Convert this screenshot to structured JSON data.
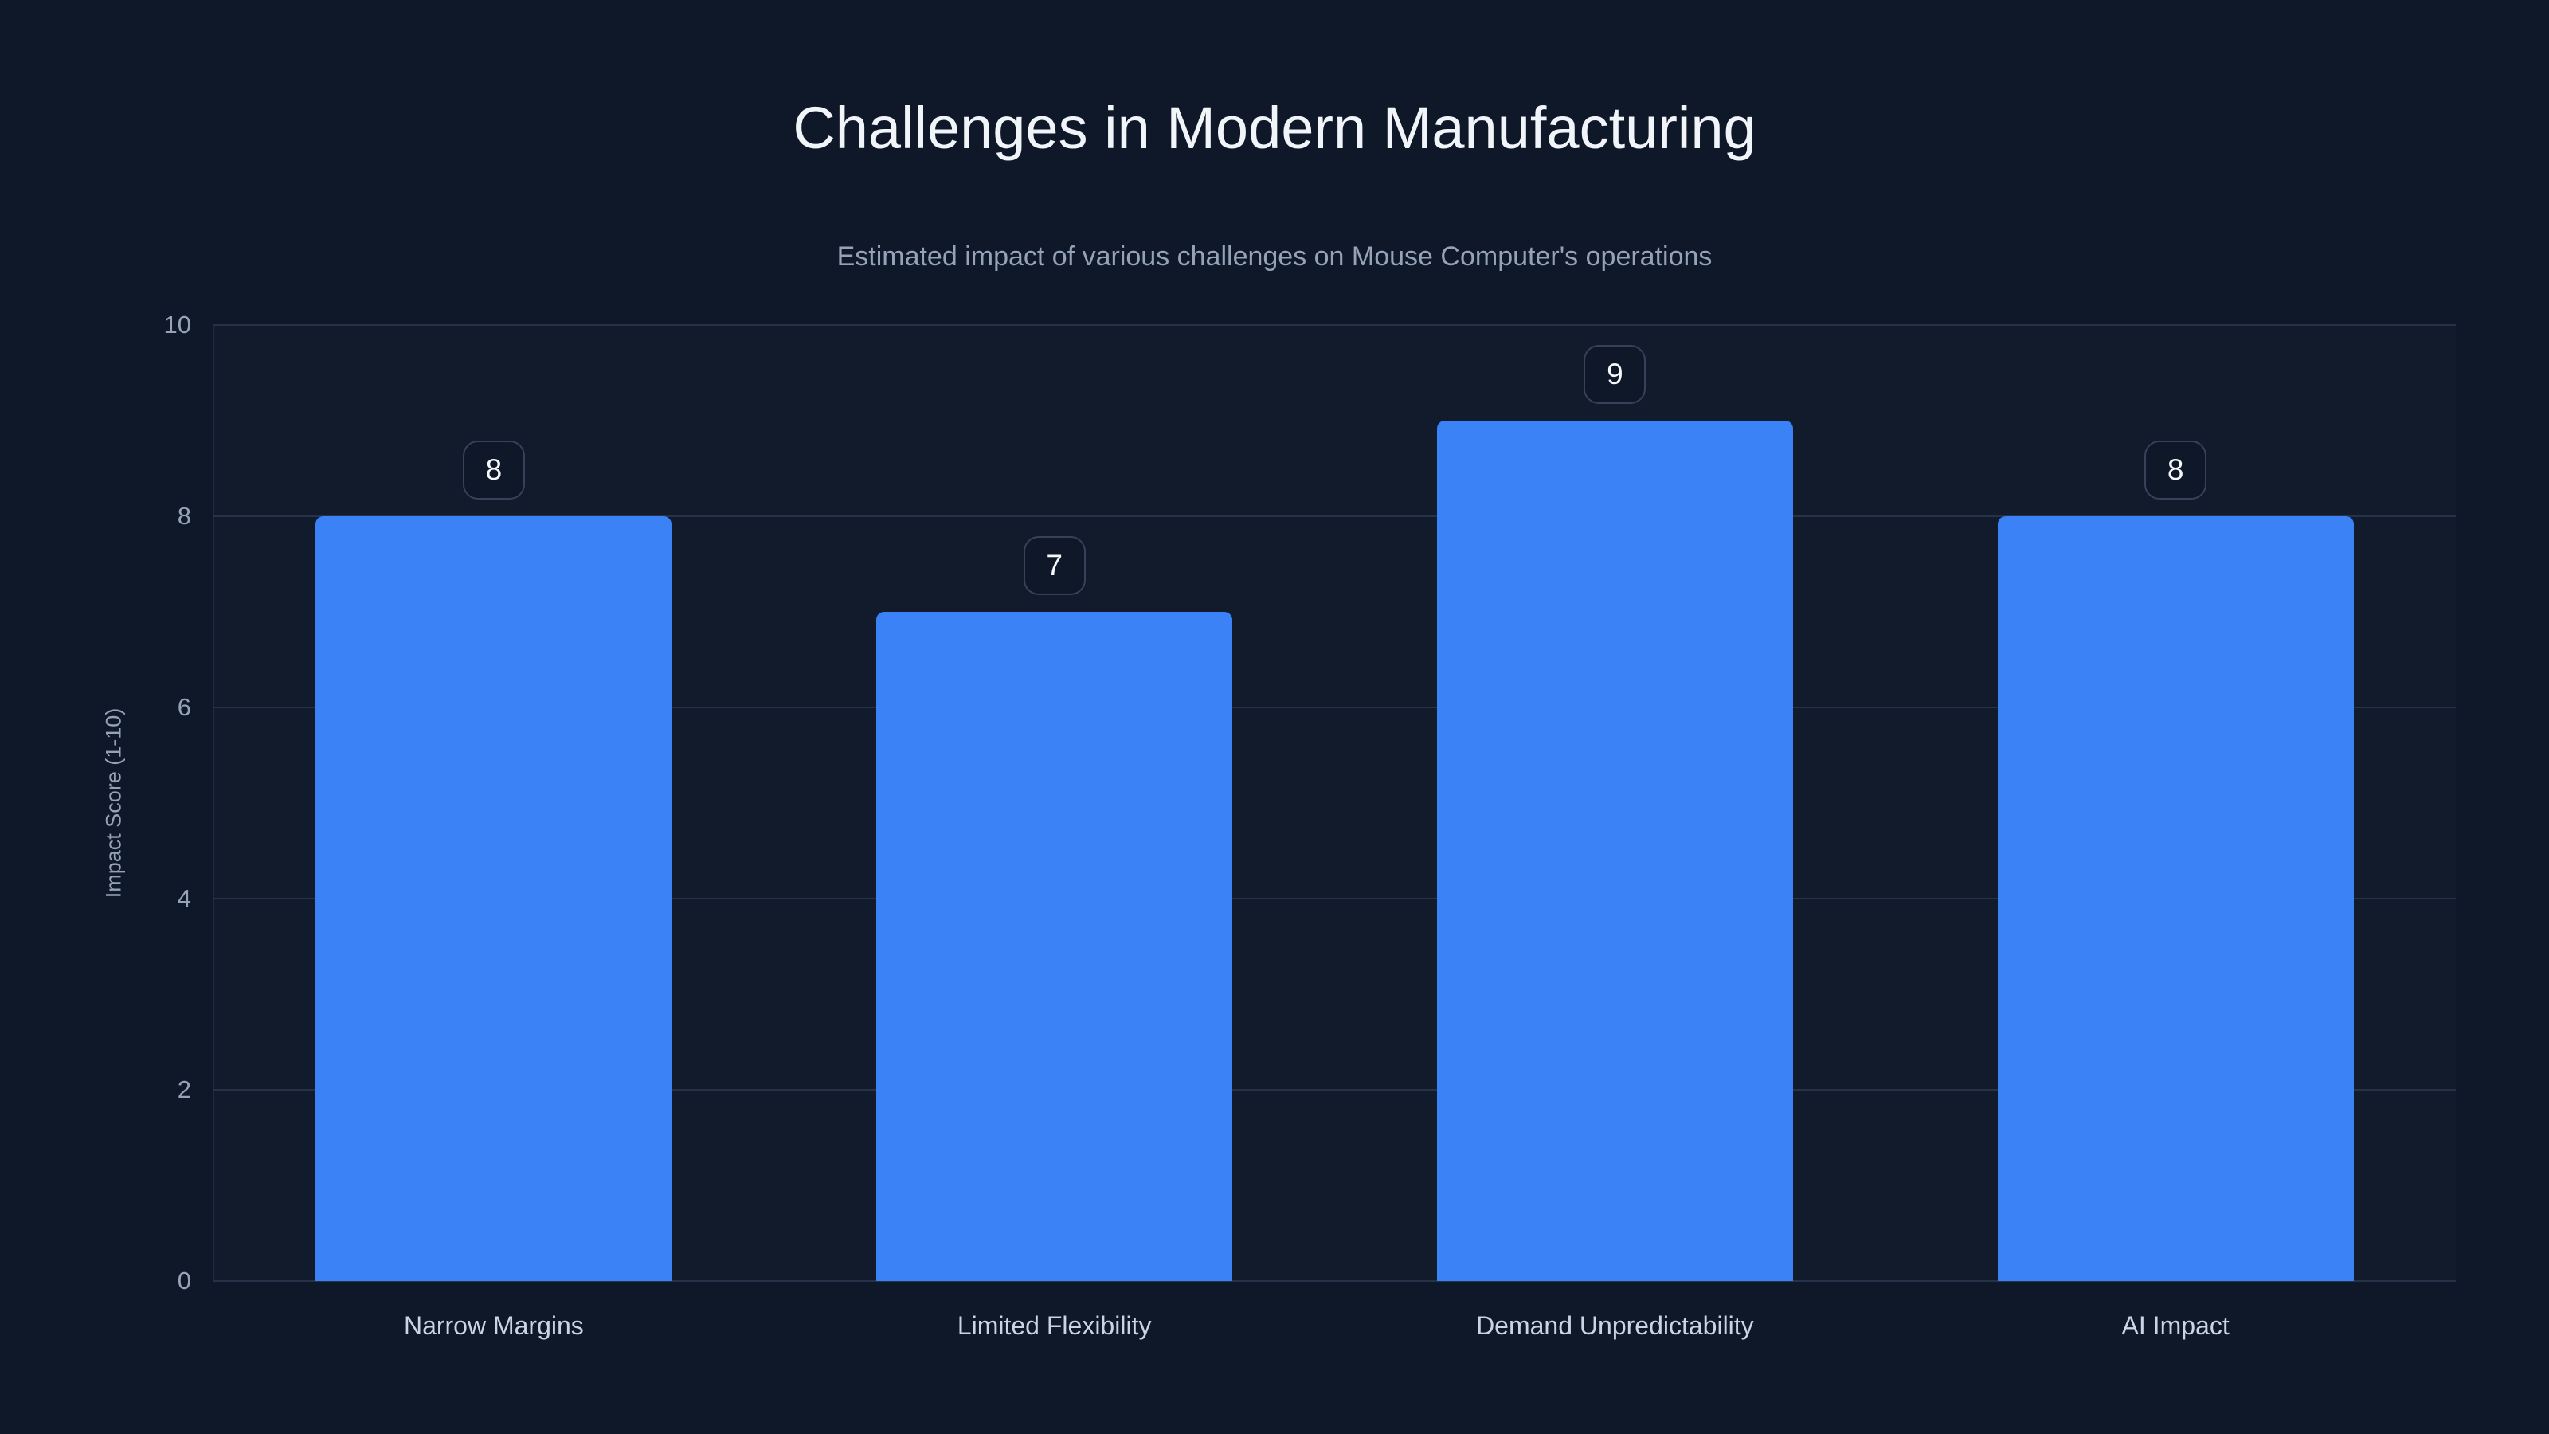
{
  "page": {
    "title": "Challenges in Modern Manufacturing",
    "subtitle": "Estimated impact of various challenges on Mouse Computer's operations"
  },
  "colors": {
    "background": "#0f1828",
    "plot": "#121b2c",
    "bar": "#3b82f6",
    "grid": "#263248",
    "axis": "#1f2b42",
    "title": "#f1f4f9",
    "subtitle": "#94a3b8",
    "tick": "#94a3b8",
    "category": "#cbd5e1",
    "badge_border": "#36425a",
    "value_text": "#f6f8fb"
  },
  "chart_data": {
    "type": "bar",
    "title": "Challenges in Modern Manufacturing",
    "subtitle": "Estimated impact of various challenges on Mouse Computer's operations",
    "categories": [
      "Narrow Margins",
      "Limited Flexibility",
      "Demand Unpredictability",
      "AI Impact"
    ],
    "values": [
      8,
      7,
      9,
      8
    ],
    "value_labels": [
      "8",
      "7",
      "9",
      "8"
    ],
    "xlabel": "",
    "ylabel": "Impact Score (1-10)",
    "ylim": [
      0,
      10
    ],
    "yticks": [
      0,
      2,
      4,
      6,
      8,
      10
    ],
    "grid": "horizontal",
    "legend": false,
    "bar_color": "#3b82f6"
  }
}
